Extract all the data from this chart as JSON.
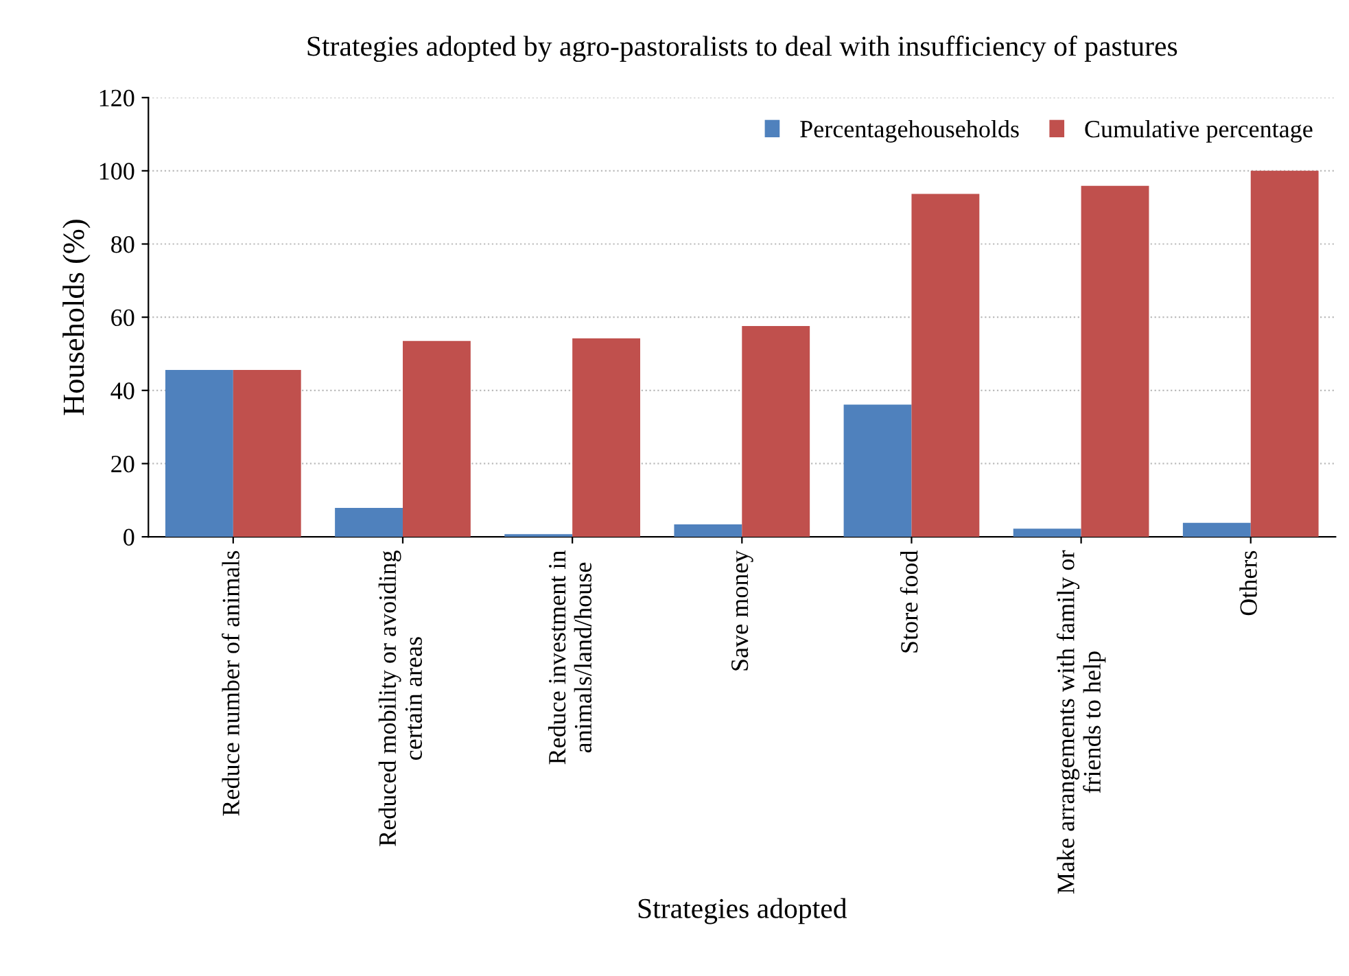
{
  "chart_data": {
    "type": "bar",
    "title": "Strategies adopted by agro-pastoralists to deal with insufficiency of pastures",
    "xlabel": "Strategies adopted",
    "ylabel": "Households (%)",
    "categories": [
      "Reduce number of animals",
      "Reduced mobility or avoiding\ncertain areas",
      "Reduce investment in\nanimals/land/house",
      "Save money",
      "Store food",
      "Make arrangements with family or\nfriends to help",
      "Others"
    ],
    "series": [
      {
        "name": "Percentagehouseholds",
        "color": "#4f81bd",
        "values": [
          45.6,
          7.9,
          0.7,
          3.4,
          36.1,
          2.2,
          3.8
        ]
      },
      {
        "name": "Cumulative percentage",
        "color": "#c0504d",
        "values": [
          45.6,
          53.5,
          54.2,
          57.6,
          93.7,
          95.9,
          100
        ]
      }
    ],
    "ylim": [
      0,
      120
    ],
    "yticks": [
      0,
      20,
      40,
      60,
      80,
      100,
      120
    ],
    "grid": "y",
    "legend": "top right"
  }
}
